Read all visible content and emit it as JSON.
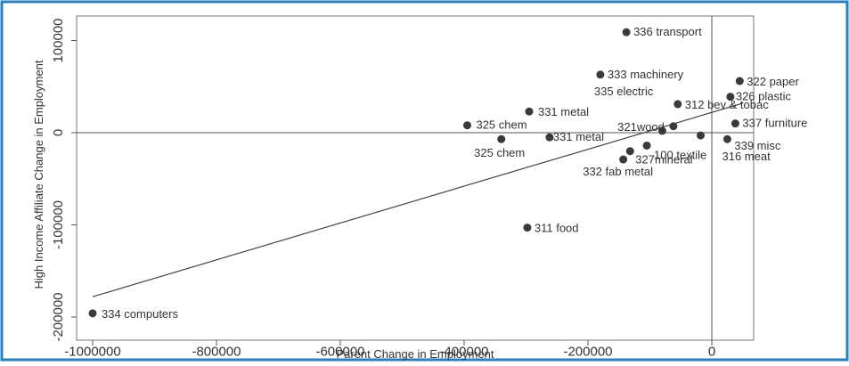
{
  "chart_data": {
    "type": "scatter",
    "title": "",
    "xlabel": "Parent Change in Employment",
    "ylabel": "High Income Affiliate Change in Employment",
    "xlim": [
      -1000000,
      60000
    ],
    "ylim": [
      -215000,
      130000
    ],
    "x_ticks": [
      -1000000,
      -800000,
      -600000,
      -400000,
      -200000,
      0
    ],
    "x_tick_labels": [
      "-1000000",
      "-800000",
      "-600000",
      "-400000",
      "-200000",
      "0"
    ],
    "y_ticks": [
      100000,
      0,
      -100000,
      -200000
    ],
    "y_tick_labels": [
      "100000",
      "0",
      "-100000",
      "-200000"
    ],
    "grid": false,
    "reference_lines": {
      "x": 0,
      "y": 0
    },
    "fit_line": {
      "x": [
        -1000000,
        50000
      ],
      "y": [
        -178000,
        32000
      ]
    },
    "points": [
      {
        "label": "336 transport",
        "x": -138000,
        "y": 109000
      },
      {
        "label": "333 machinery",
        "x": -180000,
        "y": 63000
      },
      {
        "label": "322 paper",
        "x": 45000,
        "y": 56000
      },
      {
        "label": "326 plastic",
        "x": 30000,
        "y": 39000
      },
      {
        "label": "335 electric",
        "x": -80000,
        "y": 2000
      },
      {
        "label": "312 bev & tobac",
        "x": -55000,
        "y": 31000
      },
      {
        "label": "331 metal",
        "x": -295000,
        "y": 23000
      },
      {
        "label": "321wood",
        "x": -62000,
        "y": 7000
      },
      {
        "label": "337 furniture",
        "x": 38000,
        "y": 10000
      },
      {
        "label": "325 chem",
        "x": -395000,
        "y": 8000
      },
      {
        "label": "325 chem",
        "x": -340000,
        "y": -7000
      },
      {
        "label": "331 metal",
        "x": -262000,
        "y": -5000
      },
      {
        "label": "100 textile",
        "x": -105000,
        "y": -14000
      },
      {
        "label": "339 misc",
        "x": 25000,
        "y": -7000
      },
      {
        "label": "316 meat",
        "x": -18000,
        "y": -3000
      },
      {
        "label": "327mineral",
        "x": -132000,
        "y": -20000
      },
      {
        "label": "332 fab metal",
        "x": -143000,
        "y": -29000
      },
      {
        "label": "311 food",
        "x": -298000,
        "y": -103000
      },
      {
        "label": "334 computers",
        "x": -1000000,
        "y": -196000
      }
    ]
  }
}
